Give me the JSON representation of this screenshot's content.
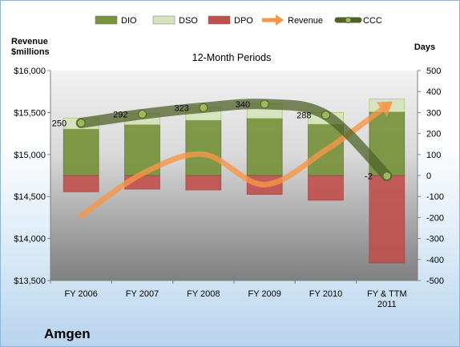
{
  "company": "Amgen",
  "chart_data": {
    "type": "bar",
    "title": "12-Month Periods",
    "categories": [
      "FY 2006",
      "FY 2007",
      "FY 2008",
      "FY 2009",
      "FY 2010",
      "FY & TTM 2011"
    ],
    "category_lines": [
      [
        "FY 2006"
      ],
      [
        "FY 2007"
      ],
      [
        "FY 2008"
      ],
      [
        "FY 2009"
      ],
      [
        "FY 2010"
      ],
      [
        "FY & TTM",
        "2011"
      ]
    ],
    "left_axis": {
      "label_lines": [
        "Revenue",
        "$millions"
      ],
      "min": 13500,
      "max": 16000,
      "step": 500,
      "ticks": [
        "$13,500",
        "$14,000",
        "$14,500",
        "$15,000",
        "$15,500",
        "$16,000"
      ]
    },
    "right_axis": {
      "label": "Days",
      "min": -500,
      "max": 500,
      "step": 100,
      "ticks": [
        "-500",
        "-400",
        "-300",
        "-200",
        "-100",
        "0",
        "100",
        "200",
        "300",
        "400",
        "500"
      ]
    },
    "legend": [
      "DIO",
      "DSO",
      "DPO",
      "Revenue",
      "CCC"
    ],
    "legend_position": "top",
    "series": [
      {
        "name": "DIO",
        "axis": "right",
        "kind": "stacked-bar",
        "color": "#77933c",
        "values": [
          221,
          242,
          263,
          272,
          244,
          303
        ]
      },
      {
        "name": "DSO",
        "axis": "right",
        "kind": "stacked-bar",
        "color": "#d7e4bd",
        "values": [
          53,
          54,
          61,
          71,
          56,
          61
        ]
      },
      {
        "name": "DPO",
        "axis": "right",
        "kind": "stacked-bar-negative",
        "color": "#c0504d",
        "values": [
          -78,
          -65,
          -69,
          -90,
          -118,
          -416
        ]
      },
      {
        "name": "Revenue",
        "axis": "left",
        "kind": "line",
        "color": "#f79646",
        "values": [
          14268,
          14771,
          15003,
          14642,
          15053,
          15582
        ]
      },
      {
        "name": "CCC",
        "axis": "right",
        "kind": "line",
        "color": "#4f6228",
        "values": [
          250,
          292,
          323,
          340,
          288,
          -2
        ]
      }
    ],
    "data_labels": [
      "250",
      "292",
      "323",
      "340",
      "288",
      "-2"
    ]
  }
}
